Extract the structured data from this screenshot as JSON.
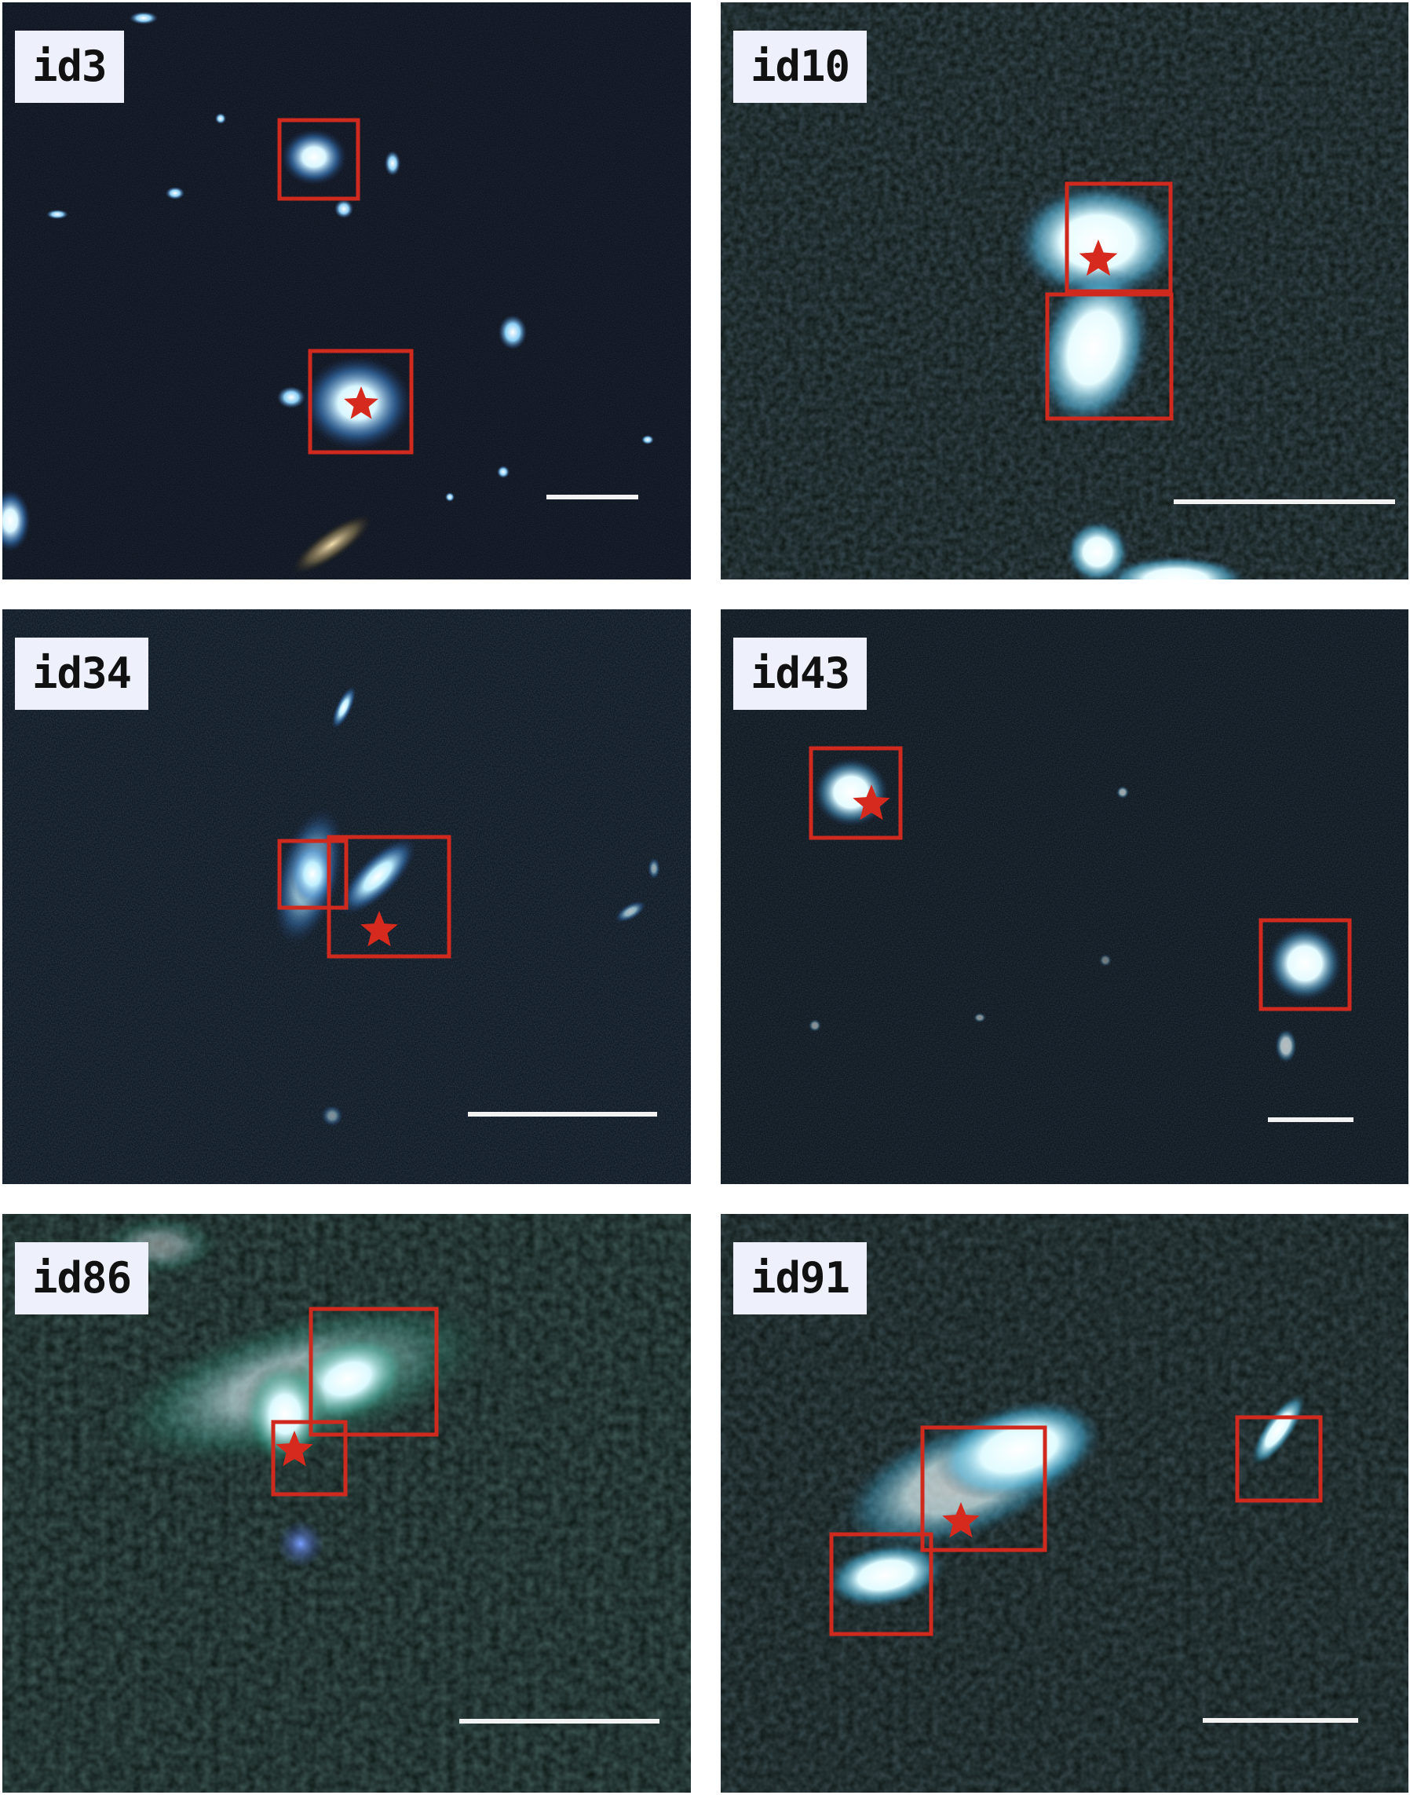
{
  "figure": {
    "panels": [
      {
        "id": "p1",
        "label": "id3"
      },
      {
        "id": "p2",
        "label": "id10"
      },
      {
        "id": "p3",
        "label": "id34"
      },
      {
        "id": "p4",
        "label": "id43"
      },
      {
        "id": "p5",
        "label": "id86"
      },
      {
        "id": "p6",
        "label": "id91"
      }
    ],
    "colors": {
      "box": "#d02a1e",
      "star": "#d62a1e",
      "scalebar": "#f2f2f2",
      "label_bg": "#eef0fb",
      "background": "#05080c"
    }
  }
}
